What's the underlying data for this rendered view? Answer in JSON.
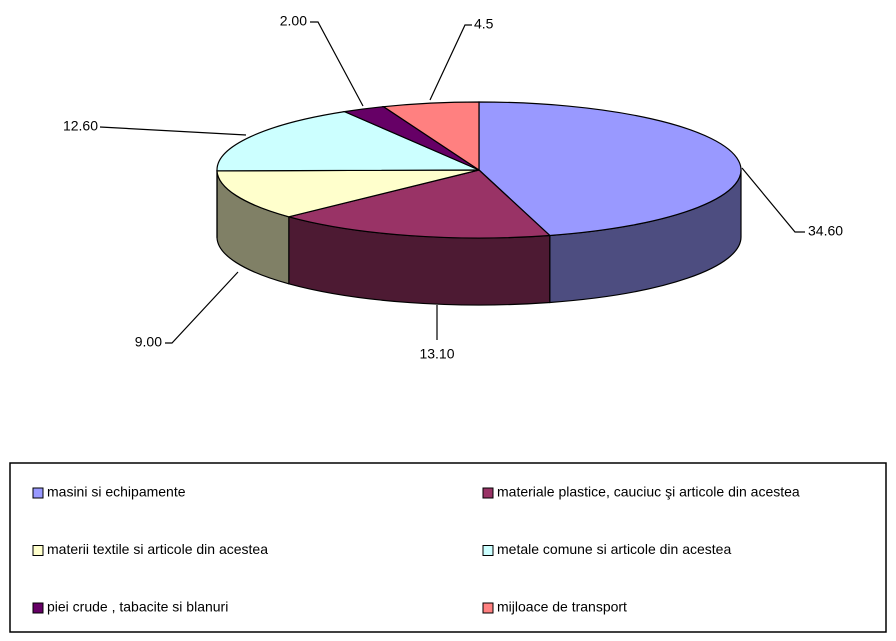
{
  "chart_data": {
    "type": "pie",
    "categories": [
      "masini si echipamente",
      "materiale plastice, cauciuc şi articole din acestea",
      "materii textile si articole din acestea",
      "metale comune si articole din acestea",
      "piei crude , tabacite si blanuri",
      "mijloace de transport"
    ],
    "values": [
      34.6,
      13.1,
      9.0,
      12.6,
      2.0,
      4.5
    ],
    "value_labels": [
      "34.60",
      "13.10",
      "9.00",
      "12.60",
      "2.00",
      "4.5"
    ],
    "colors": [
      "#9999ff",
      "#993366",
      "#ffffcc",
      "#ccffff",
      "#660066",
      "#ff8080"
    ]
  }
}
